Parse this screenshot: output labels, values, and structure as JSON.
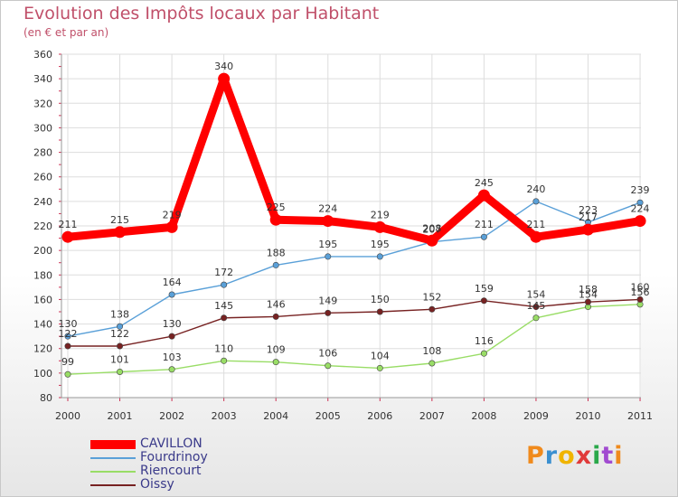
{
  "header": {
    "title": "Evolution des Impôts locaux par Habitant",
    "subtitle": "(en € et par an)"
  },
  "logo": {
    "text": "Proxiti",
    "colors": [
      "#f08a1c",
      "#3a8fd0",
      "#f0b400",
      "#e03a3a",
      "#2aa84a",
      "#a14bd0",
      "#f08a1c"
    ]
  },
  "chart_data": {
    "type": "line",
    "categories": [
      "2000",
      "2001",
      "2002",
      "2003",
      "2004",
      "2005",
      "2006",
      "2007",
      "2008",
      "2009",
      "2010",
      "2011"
    ],
    "ylim": [
      80,
      360
    ],
    "yticks": [
      80,
      100,
      120,
      140,
      160,
      180,
      200,
      220,
      240,
      260,
      280,
      300,
      320,
      340,
      360
    ],
    "grid": true,
    "legend_position": "bottom-left",
    "series": [
      {
        "name": "CAVILLON",
        "color": "#ff0000",
        "values": [
          211,
          215,
          219,
          340,
          225,
          224,
          219,
          208,
          245,
          211,
          217,
          224
        ],
        "labels": [
          "211",
          "215",
          "219",
          "340",
          "225",
          "224",
          "219",
          "208",
          "245",
          "211",
          "217",
          "224"
        ]
      },
      {
        "name": "Fourdrinoy",
        "color": "#5aa0d8",
        "values": [
          130,
          138,
          164,
          172,
          188,
          195,
          195,
          207,
          211,
          240,
          223,
          239
        ],
        "labels": [
          "130",
          "138",
          "164",
          "172",
          "188",
          "195",
          "195",
          "207",
          "211",
          "240",
          "223",
          "239"
        ]
      },
      {
        "name": "Riencourt",
        "color": "#99dd66",
        "values": [
          99,
          101,
          103,
          110,
          109,
          106,
          104,
          108,
          116,
          145,
          154,
          156
        ],
        "labels": [
          "99",
          "101",
          "103",
          "110",
          "109",
          "106",
          "104",
          "108",
          "116",
          "145",
          "154",
          "156"
        ]
      },
      {
        "name": "Oissy",
        "color": "#772222",
        "values": [
          122,
          122,
          130,
          145,
          146,
          149,
          150,
          152,
          159,
          154,
          158,
          160
        ],
        "labels": [
          "122",
          "122",
          "130",
          "145",
          "146",
          "149",
          "150",
          "152",
          "159",
          "154",
          "158",
          "160"
        ]
      }
    ]
  }
}
